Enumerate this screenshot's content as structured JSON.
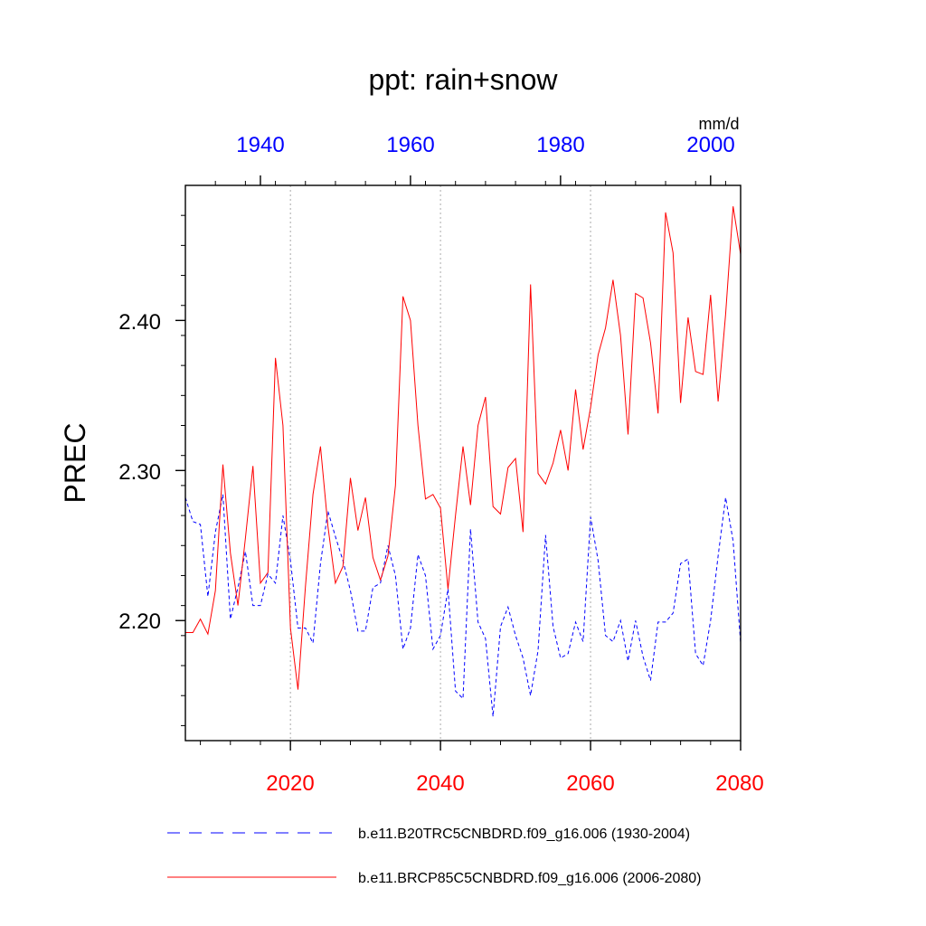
{
  "chart_data": {
    "type": "line",
    "title": "ppt: rain+snow",
    "ylabel": "PREC",
    "units": "mm/d",
    "ylim": [
      2.12,
      2.49
    ],
    "yticks": [
      2.2,
      2.3,
      2.4
    ],
    "ytick_labels": [
      "2.20",
      "2.30",
      "2.40"
    ],
    "grid": "vertical dotted lines at major bottom-axis ticks",
    "legend_position": "bottom",
    "colors": {
      "hist": "#0000ff",
      "future": "#ff0000",
      "grid": "#aaaaaa"
    },
    "axes": {
      "top": {
        "range": [
          1930,
          2004
        ],
        "ticks": [
          1940,
          1960,
          1980,
          2000
        ],
        "labels": [
          "1940",
          "1960",
          "1980",
          "2000"
        ]
      },
      "bottom": {
        "range": [
          2006,
          2080
        ],
        "ticks": [
          2020,
          2040,
          2060,
          2080
        ],
        "labels": [
          "2020",
          "2040",
          "2060",
          "2080"
        ]
      }
    },
    "series": [
      {
        "name": "b.e11.B20TRC5CNBDRD.f09_g16.006 (1930-2004)",
        "axis": "top",
        "style": "dashed",
        "x_start": 1930,
        "values": [
          2.282,
          2.266,
          2.264,
          2.216,
          2.259,
          2.284,
          2.201,
          2.222,
          2.246,
          2.21,
          2.21,
          2.231,
          2.225,
          2.27,
          2.24,
          2.195,
          2.195,
          2.185,
          2.238,
          2.273,
          2.256,
          2.24,
          2.22,
          2.193,
          2.193,
          2.222,
          2.225,
          2.25,
          2.23,
          2.181,
          2.195,
          2.244,
          2.23,
          2.181,
          2.19,
          2.221,
          2.153,
          2.148,
          2.261,
          2.199,
          2.188,
          2.136,
          2.196,
          2.209,
          2.19,
          2.175,
          2.15,
          2.18,
          2.257,
          2.196,
          2.175,
          2.178,
          2.199,
          2.186,
          2.269,
          2.24,
          2.19,
          2.186,
          2.2,
          2.173,
          2.2,
          2.176,
          2.16,
          2.199,
          2.199,
          2.205,
          2.238,
          2.241,
          2.178,
          2.17,
          2.2,
          2.243,
          2.282,
          2.253,
          2.185
        ]
      },
      {
        "name": "b.e11.BRCP85C5CNBDRD.f09_g16.006 (2006-2080)",
        "axis": "bottom",
        "style": "solid",
        "x_start": 2006,
        "values": [
          2.192,
          2.192,
          2.201,
          2.191,
          2.22,
          2.304,
          2.245,
          2.21,
          2.255,
          2.303,
          2.225,
          2.232,
          2.375,
          2.33,
          2.195,
          2.154,
          2.223,
          2.284,
          2.316,
          2.263,
          2.225,
          2.236,
          2.295,
          2.26,
          2.282,
          2.242,
          2.227,
          2.243,
          2.29,
          2.416,
          2.4,
          2.33,
          2.281,
          2.284,
          2.275,
          2.221,
          2.27,
          2.316,
          2.277,
          2.33,
          2.349,
          2.276,
          2.271,
          2.302,
          2.308,
          2.259,
          2.424,
          2.298,
          2.291,
          2.305,
          2.327,
          2.3,
          2.354,
          2.314,
          2.342,
          2.377,
          2.395,
          2.427,
          2.39,
          2.324,
          2.418,
          2.415,
          2.385,
          2.338,
          2.472,
          2.445,
          2.345,
          2.402,
          2.366,
          2.364,
          2.417,
          2.346,
          2.404,
          2.476,
          2.444
        ]
      }
    ]
  }
}
